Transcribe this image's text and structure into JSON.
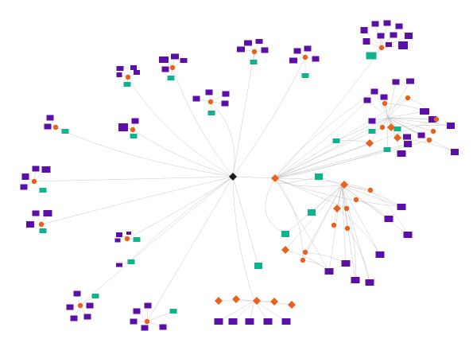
{
  "colors": {
    "background": "#ffffff",
    "edge": "#bdbdbd",
    "purple_node": "#5b0fa8",
    "teal_node": "#10b48c",
    "orange_node": "#e8621a",
    "hub_node": "#1e1e1e"
  },
  "legend": null,
  "graph": {
    "node_types": [
      "hub",
      "purple-rect",
      "teal-rect",
      "orange-circle",
      "orange-diamond"
    ],
    "hub_count": 2
  }
}
